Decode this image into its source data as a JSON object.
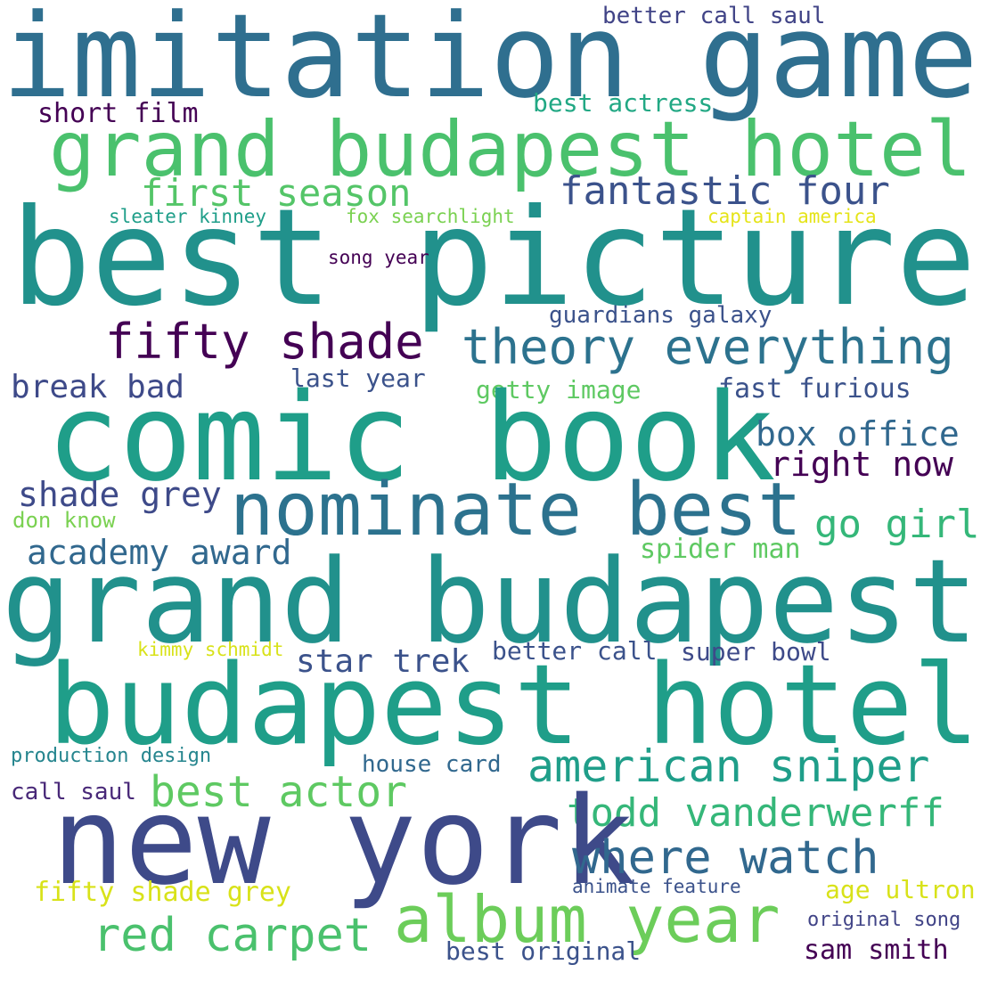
{
  "words": [
    {
      "text": "imitation game",
      "color": "#2f6f8f"
    },
    {
      "text": "better call saul",
      "color": "#414487"
    },
    {
      "text": "best actress",
      "color": "#22a884"
    },
    {
      "text": "short film",
      "color": "#440154"
    },
    {
      "text": "grand budapest hotel",
      "color": "#4ac16d"
    },
    {
      "text": "first season",
      "color": "#54c568"
    },
    {
      "text": "fantastic four",
      "color": "#3b528b"
    },
    {
      "text": "sleater kinney",
      "color": "#1f9e89"
    },
    {
      "text": "fox searchlight",
      "color": "#7ad151"
    },
    {
      "text": "captain america",
      "color": "#e5e419"
    },
    {
      "text": "best picture",
      "color": "#21918c"
    },
    {
      "text": "song year",
      "color": "#440154"
    },
    {
      "text": "guardians galaxy",
      "color": "#3b528b"
    },
    {
      "text": "fifty shade",
      "color": "#440154"
    },
    {
      "text": "theory everything",
      "color": "#2c728e"
    },
    {
      "text": "break bad",
      "color": "#3e4a89"
    },
    {
      "text": "last year",
      "color": "#3b528b"
    },
    {
      "text": "getty image",
      "color": "#5ec962"
    },
    {
      "text": "fast furious",
      "color": "#3b528b"
    },
    {
      "text": "comic book",
      "color": "#1f9e89"
    },
    {
      "text": "box office",
      "color": "#31688e"
    },
    {
      "text": "right now",
      "color": "#440154"
    },
    {
      "text": "shade grey",
      "color": "#3e4a89"
    },
    {
      "text": "nominate best",
      "color": "#2c728e"
    },
    {
      "text": "don know",
      "color": "#7ad151"
    },
    {
      "text": "go girl",
      "color": "#35b779"
    },
    {
      "text": "academy award",
      "color": "#31688e"
    },
    {
      "text": "spider man",
      "color": "#5ec962"
    },
    {
      "text": "grand budapest",
      "color": "#21918c"
    },
    {
      "text": "kimmy schmidt",
      "color": "#d8e219"
    },
    {
      "text": "star trek",
      "color": "#3b528b"
    },
    {
      "text": "better call",
      "color": "#3b528b"
    },
    {
      "text": "super bowl",
      "color": "#3e4a89"
    },
    {
      "text": "budapest hotel",
      "color": "#1f9e89"
    },
    {
      "text": "production design",
      "color": "#25858e"
    },
    {
      "text": "house card",
      "color": "#31688e"
    },
    {
      "text": "american sniper",
      "color": "#1f9e89"
    },
    {
      "text": "call saul",
      "color": "#482878"
    },
    {
      "text": "best actor",
      "color": "#5ec962"
    },
    {
      "text": "todd vanderwerff",
      "color": "#35b779"
    },
    {
      "text": "new york",
      "color": "#3e4a89"
    },
    {
      "text": "where watch",
      "color": "#31688e"
    },
    {
      "text": "fifty shade grey",
      "color": "#d8e219"
    },
    {
      "text": "animate feature",
      "color": "#3b528b"
    },
    {
      "text": "age ultron",
      "color": "#d8e219"
    },
    {
      "text": "album year",
      "color": "#6ccd5a"
    },
    {
      "text": "original song",
      "color": "#414487"
    },
    {
      "text": "red carpet",
      "color": "#4ac16d"
    },
    {
      "text": "best original",
      "color": "#3b528b"
    },
    {
      "text": "sam smith",
      "color": "#440154"
    }
  ]
}
